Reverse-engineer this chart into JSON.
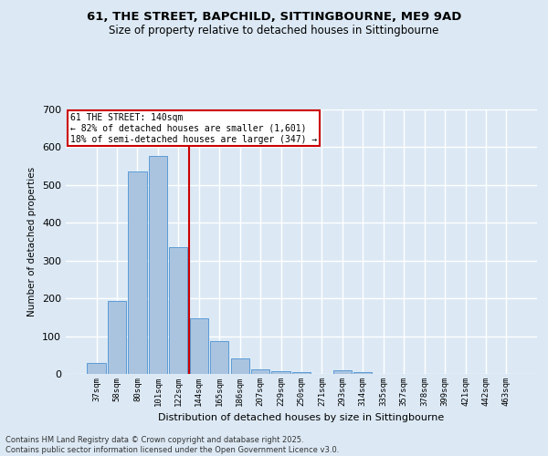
{
  "title": "61, THE STREET, BAPCHILD, SITTINGBOURNE, ME9 9AD",
  "subtitle": "Size of property relative to detached houses in Sittingbourne",
  "xlabel": "Distribution of detached houses by size in Sittingbourne",
  "ylabel": "Number of detached properties",
  "categories": [
    "37sqm",
    "58sqm",
    "80sqm",
    "101sqm",
    "122sqm",
    "144sqm",
    "165sqm",
    "186sqm",
    "207sqm",
    "229sqm",
    "250sqm",
    "271sqm",
    "293sqm",
    "314sqm",
    "335sqm",
    "357sqm",
    "378sqm",
    "399sqm",
    "421sqm",
    "442sqm",
    "463sqm"
  ],
  "values": [
    30,
    193,
    535,
    577,
    335,
    148,
    87,
    40,
    12,
    8,
    5,
    0,
    9,
    5,
    0,
    0,
    0,
    0,
    0,
    0,
    0
  ],
  "bar_color": "#aac4e0",
  "bar_edge_color": "#5b9bd5",
  "background_color": "#dce9f5",
  "grid_color": "#ffffff",
  "vline_color": "#cc0000",
  "annotation_title": "61 THE STREET: 140sqm",
  "annotation_line1": "← 82% of detached houses are smaller (1,601)",
  "annotation_line2": "18% of semi-detached houses are larger (347) →",
  "annotation_box_color": "#cc0000",
  "ylim": [
    0,
    700
  ],
  "yticks": [
    0,
    100,
    200,
    300,
    400,
    500,
    600,
    700
  ],
  "footer_line1": "Contains HM Land Registry data © Crown copyright and database right 2025.",
  "footer_line2": "Contains public sector information licensed under the Open Government Licence v3.0."
}
